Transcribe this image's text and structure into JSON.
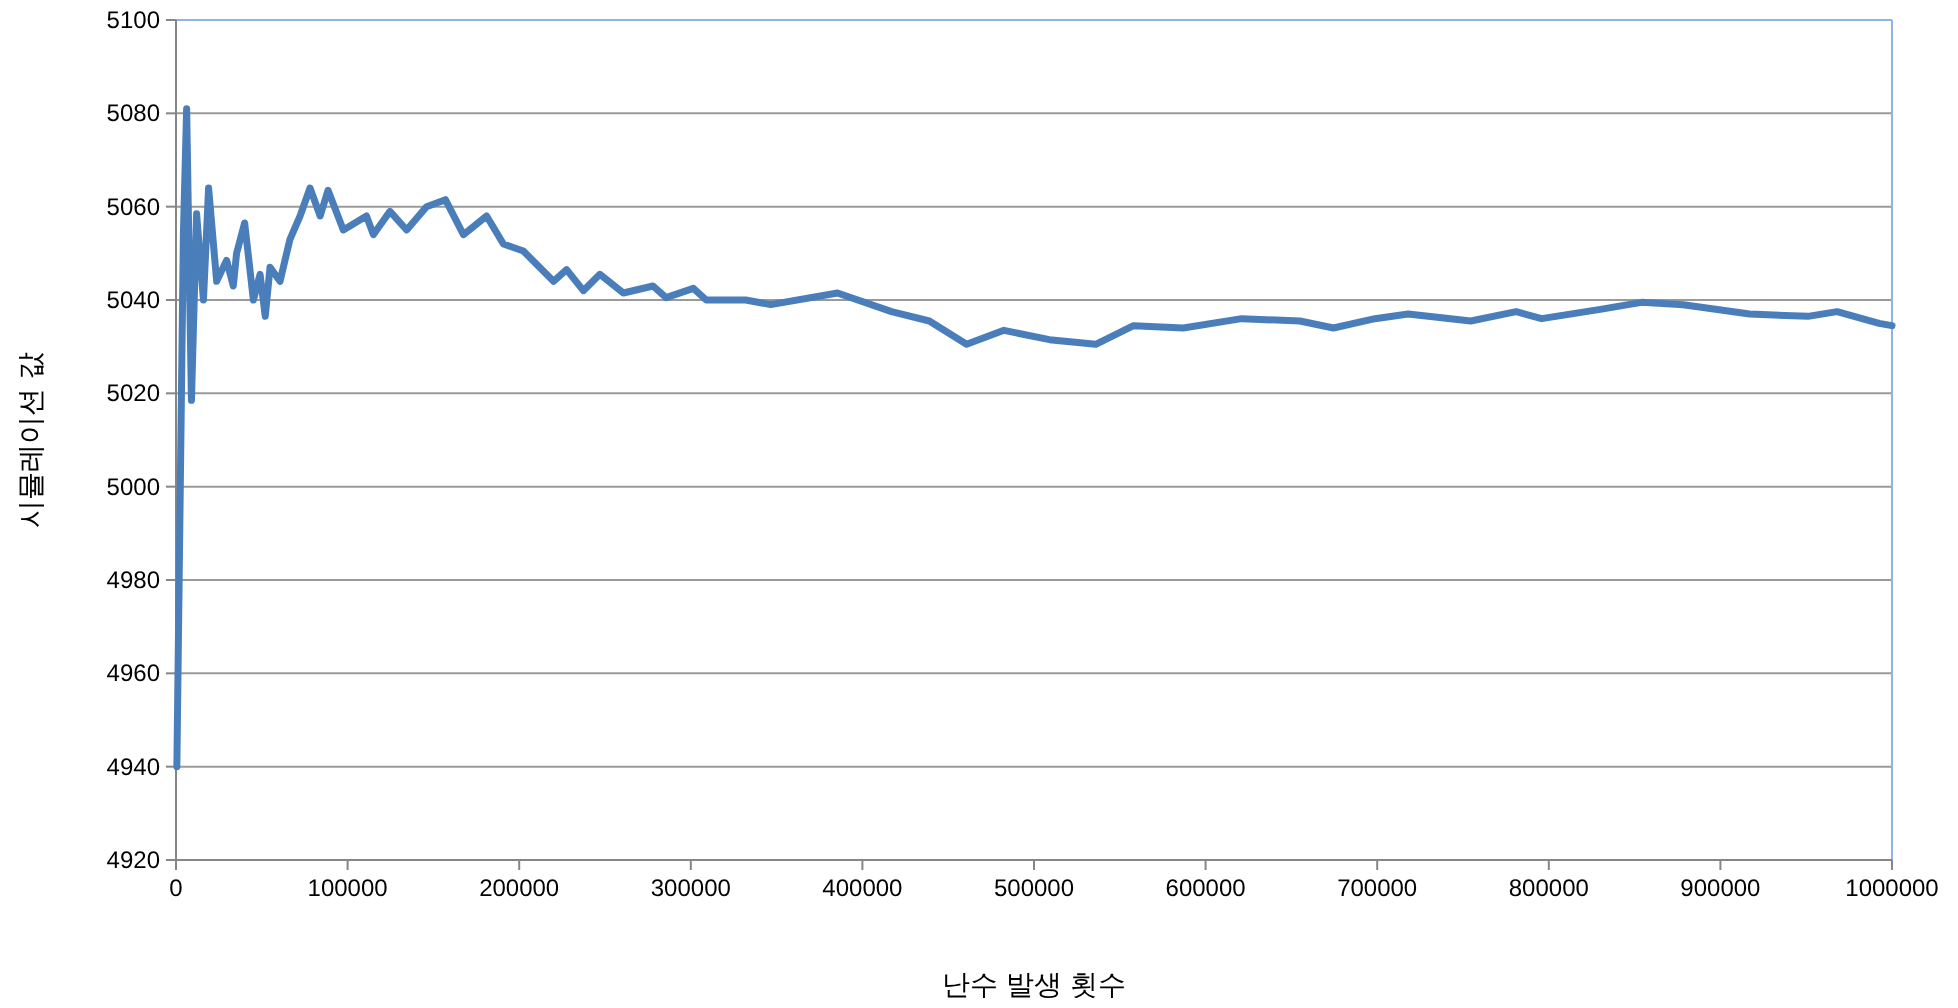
{
  "chart_data": {
    "type": "line",
    "xlabel": "난수 발생 횟수",
    "ylabel": "시뮬레이션 값",
    "xlim": [
      0,
      1000000
    ],
    "xticks": [
      0,
      100000,
      200000,
      300000,
      400000,
      500000,
      600000,
      700000,
      800000,
      900000,
      1000000
    ],
    "ylim": [
      4920,
      5100
    ],
    "yticks": [
      4920,
      4940,
      4960,
      4980,
      5000,
      5020,
      5040,
      5060,
      5080,
      5100
    ],
    "grid": "y",
    "marker": "none",
    "line_style": "solid",
    "series": [
      {
        "color": "#4a7ebb",
        "x": [
          500,
          4300,
          6200,
          9000,
          12000,
          16000,
          19000,
          23700,
          29500,
          33400,
          35300,
          40000,
          45100,
          49000,
          52000,
          54800,
          60600,
          66400,
          72300,
          78100,
          84000,
          88600,
          97500,
          111000,
          115000,
          124700,
          134400,
          146000,
          157000,
          167500,
          181000,
          190800,
          202400,
          220000,
          227600,
          237400,
          247000,
          260700,
          278000,
          285600,
          301500,
          309000,
          332000,
          346600,
          385500,
          417000,
          439000,
          460700,
          482500,
          509000,
          536000,
          558000,
          587000,
          621000,
          655000,
          674500,
          698700,
          718000,
          754500,
          781000,
          795800,
          830000,
          854000,
          878400,
          917000,
          951000,
          968000,
          992500,
          1000000
        ],
        "values": [
          4940,
          5054,
          5081,
          5018.5,
          5058.5,
          5040,
          5064,
          5044,
          5048.5,
          5043,
          5050,
          5056.5,
          5040,
          5045.5,
          5036.5,
          5047,
          5044,
          5053,
          5058,
          5064,
          5058,
          5063.5,
          5055,
          5058,
          5054,
          5059,
          5055,
          5060,
          5061.5,
          5054,
          5058,
          5052,
          5050.5,
          5044,
          5046.5,
          5042,
          5045.5,
          5041.5,
          5043,
          5040.5,
          5042.5,
          5040,
          5040,
          5039,
          5041.5,
          5037.5,
          5035.5,
          5030.5,
          5033.5,
          5031.5,
          5030.5,
          5034.5,
          5034,
          5036,
          5035.5,
          5034,
          5036,
          5037,
          5035.5,
          5037.5,
          5036,
          5038,
          5039.5,
          5039,
          5037,
          5036.5,
          5037.5,
          5035,
          5034.5
        ]
      }
    ]
  }
}
